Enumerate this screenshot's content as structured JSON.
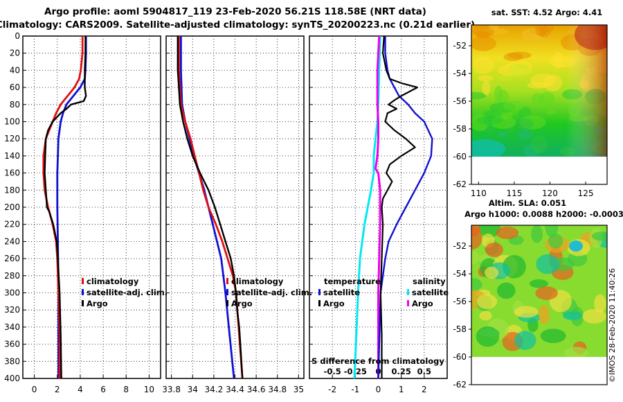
{
  "header": {
    "line1": "Argo profile: aoml 5904817_119 23-Feb-2020 56.21S 118.58E (NRT data)",
    "line2": "Climatology: CARS2009. Satellite-adjusted climatology: synTS_20200223.nc (0.21d earlier)"
  },
  "colors": {
    "climatology": "#e01010",
    "satellite": "#1010d0",
    "argo": "#000000",
    "sat_salinity": "#00e8f0",
    "argo_salinity": "#ee00ee"
  },
  "chart_data": [
    {
      "type": "line",
      "name": "temperature-profile",
      "xlim": [
        -1,
        11
      ],
      "ylim": [
        400,
        0
      ],
      "xticks": [
        "0",
        "2",
        "4",
        "6",
        "8",
        "10"
      ],
      "yticks": [
        "0",
        "20",
        "40",
        "60",
        "80",
        "100",
        "120",
        "140",
        "160",
        "180",
        "200",
        "220",
        "240",
        "260",
        "280",
        "300",
        "320",
        "340",
        "360",
        "380",
        "400"
      ],
      "legend": [
        "climatology",
        "satellite-adj. clim.",
        "Argo"
      ],
      "series": [
        {
          "name": "climatology",
          "depth": [
            0,
            20,
            40,
            50,
            60,
            70,
            80,
            90,
            100,
            110,
            120,
            140,
            160,
            180,
            200,
            220,
            240,
            260,
            300,
            350,
            400
          ],
          "values": [
            4.2,
            4.2,
            4.05,
            3.9,
            3.5,
            2.9,
            2.3,
            1.9,
            1.6,
            1.3,
            1.0,
            0.8,
            0.8,
            0.9,
            1.2,
            1.6,
            1.9,
            2.0,
            2.1,
            2.2,
            2.2
          ]
        },
        {
          "name": "satellite-adj. clim.",
          "depth": [
            0,
            20,
            40,
            50,
            60,
            70,
            80,
            90,
            100,
            120,
            140,
            160,
            180,
            200,
            240,
            300,
            350,
            400
          ],
          "values": [
            4.5,
            4.5,
            4.45,
            4.4,
            4.0,
            3.4,
            2.8,
            2.5,
            2.3,
            2.1,
            2.05,
            2.0,
            2.0,
            2.0,
            2.05,
            2.1,
            2.1,
            2.1
          ]
        },
        {
          "name": "Argo",
          "depth": [
            0,
            20,
            40,
            60,
            70,
            76,
            80,
            85,
            90,
            100,
            110,
            120,
            140,
            160,
            180,
            200,
            205,
            220,
            240,
            260,
            300,
            350,
            400
          ],
          "values": [
            4.45,
            4.45,
            4.4,
            4.4,
            4.5,
            4.3,
            3.2,
            2.8,
            2.3,
            1.6,
            1.2,
            1.0,
            0.95,
            0.9,
            1.0,
            1.1,
            1.3,
            1.65,
            1.95,
            2.05,
            2.2,
            2.3,
            2.35
          ]
        }
      ]
    },
    {
      "type": "line",
      "name": "salinity-profile",
      "xlim": [
        33.75,
        35.05
      ],
      "ylim": [
        400,
        0
      ],
      "xticks": [
        "33.8",
        "34",
        "34.2",
        "34.4",
        "34.6",
        "34.8",
        "35"
      ],
      "legend": [
        "climatology",
        "satellite-adj. clim.",
        "Argo"
      ],
      "series": [
        {
          "name": "climatology",
          "depth": [
            0,
            40,
            80,
            100,
            120,
            140,
            160,
            180,
            200,
            220,
            240,
            260,
            280,
            300,
            350,
            400
          ],
          "values": [
            33.87,
            33.87,
            33.89,
            33.93,
            33.98,
            34.02,
            34.06,
            34.1,
            34.15,
            34.22,
            34.28,
            34.33,
            34.38,
            34.41,
            34.44,
            34.47
          ]
        },
        {
          "name": "satellite-adj. clim.",
          "depth": [
            0,
            40,
            80,
            100,
            120,
            140,
            160,
            180,
            200,
            220,
            240,
            260,
            300,
            350,
            400
          ],
          "values": [
            33.89,
            33.89,
            33.9,
            33.93,
            33.97,
            34.01,
            34.06,
            34.11,
            34.15,
            34.19,
            34.23,
            34.27,
            34.31,
            34.35,
            34.39
          ]
        },
        {
          "name": "Argo",
          "depth": [
            0,
            20,
            40,
            60,
            80,
            100,
            120,
            140,
            160,
            180,
            200,
            220,
            240,
            260,
            280,
            300,
            320,
            340,
            360,
            380,
            400
          ],
          "values": [
            33.86,
            33.86,
            33.86,
            33.87,
            33.88,
            33.91,
            33.95,
            34.0,
            34.07,
            34.15,
            34.21,
            34.26,
            34.31,
            34.36,
            34.39,
            34.41,
            34.42,
            34.44,
            34.45,
            34.46,
            34.47
          ]
        }
      ]
    },
    {
      "type": "line",
      "name": "difference-from-climatology",
      "xlim": [
        -3,
        3
      ],
      "ylim": [
        400,
        0
      ],
      "xticks": [
        "-2",
        "-1",
        "0",
        "1",
        "2"
      ],
      "xticks_salinity": [
        "-0.5",
        "-0.25",
        "0",
        "0.25",
        "0.5"
      ],
      "xlabel": "S difference from climatology",
      "legend_temperature": {
        "title": "temperature",
        "entries": [
          "satellite",
          "Argo"
        ]
      },
      "legend_salinity": {
        "title": "salinity",
        "entries": [
          "satellite",
          "Argo"
        ]
      },
      "series": [
        {
          "name": "temperature satellite",
          "depth": [
            0,
            20,
            40,
            50,
            60,
            70,
            80,
            90,
            100,
            120,
            140,
            160,
            180,
            200,
            220,
            240,
            260,
            300,
            350,
            400
          ],
          "values": [
            0.3,
            0.3,
            0.4,
            0.5,
            0.7,
            0.9,
            1.3,
            1.6,
            2.0,
            2.35,
            2.3,
            2.0,
            1.6,
            1.2,
            0.8,
            0.45,
            0.3,
            0.1,
            0.05,
            0.0
          ]
        },
        {
          "name": "temperature Argo",
          "depth": [
            0,
            20,
            40,
            50,
            55,
            60,
            70,
            75,
            80,
            85,
            90,
            100,
            110,
            120,
            130,
            140,
            150,
            160,
            170,
            180,
            190,
            200,
            220,
            260,
            300,
            350,
            400
          ],
          "values": [
            0.25,
            0.2,
            0.35,
            0.5,
            1.0,
            1.7,
            1.0,
            0.7,
            0.45,
            0.8,
            0.4,
            0.3,
            0.7,
            1.2,
            1.6,
            1.0,
            0.5,
            0.35,
            0.6,
            0.4,
            0.2,
            0.15,
            0.2,
            0.15,
            0.1,
            0.15,
            0.15
          ]
        },
        {
          "name": "salinity satellite",
          "depth": [
            0,
            40,
            80,
            100,
            140,
            160,
            180,
            220,
            260,
            300,
            350,
            400
          ],
          "values": [
            0.02,
            0.01,
            0.0,
            -0.01,
            -0.05,
            -0.05,
            -0.08,
            -0.15,
            -0.2,
            -0.22,
            -0.24,
            -0.26
          ]
        },
        {
          "name": "salinity Argo",
          "depth": [
            0,
            40,
            80,
            100,
            120,
            140,
            155,
            160,
            180,
            220,
            260,
            300,
            350,
            400
          ],
          "values": [
            0.01,
            -0.01,
            -0.01,
            0.0,
            0.0,
            -0.01,
            -0.03,
            0.0,
            0.02,
            0.02,
            0.01,
            0.0,
            0.0,
            0.0
          ]
        }
      ]
    },
    {
      "type": "heatmap",
      "name": "sst-map",
      "title": "sat. SST: 4.52 Argo: 4.41",
      "xlim": [
        109,
        128
      ],
      "ylim": [
        -62,
        -50.5
      ],
      "xticks": [
        "110",
        "115",
        "120",
        "125"
      ],
      "yticks": [
        "-52",
        "-54",
        "-56",
        "-58",
        "-60",
        "-62"
      ]
    },
    {
      "type": "heatmap",
      "name": "sla-map",
      "title_line1": "Altim. SLA: 0.051",
      "title_line2": "Argo h1000: 0.0088 h2000: -0.00034",
      "xlim": [
        109,
        128
      ],
      "ylim": [
        -62,
        -50.5
      ],
      "yticks": [
        "-52",
        "-54",
        "-56",
        "-58",
        "-60",
        "-62"
      ]
    }
  ],
  "footer": {
    "credit": "©IMOS 28-Feb-2020 11:40:26"
  }
}
